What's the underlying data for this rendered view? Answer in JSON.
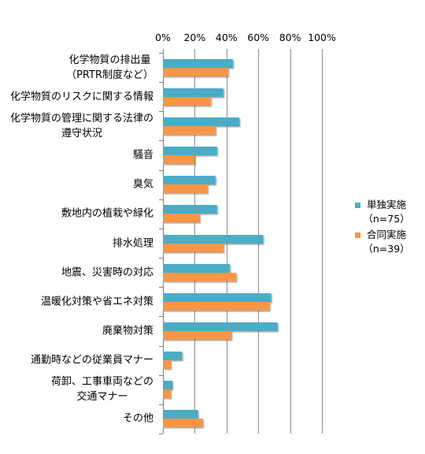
{
  "chart_data": {
    "type": "bar",
    "orientation": "horizontal",
    "categories": [
      "化学物質の排出量\n（PRTR制度など）",
      "化学物質のリスクに関する情報",
      "化学物質の管理に関する法律の\n遵守状況",
      "騒音",
      "臭気",
      "敷地内の植栽や緑化",
      "排水処理",
      "地震、災害時の対応",
      "温暖化対策や省エネ対策",
      "廃棄物対策",
      "通勤時などの従業員マナー",
      "荷卸、工事車両などの\n交通マナー",
      "その他"
    ],
    "series": [
      {
        "name": "単独実施\n（n=75）",
        "color": "#4BACC6",
        "values": [
          44,
          38,
          48,
          34,
          33,
          34,
          63,
          42,
          68,
          72,
          12,
          6,
          22
        ]
      },
      {
        "name": "合同実施\n（n=39）",
        "color": "#F79646",
        "values": [
          41,
          30,
          33,
          20,
          28,
          23,
          38,
          46,
          67,
          43,
          5,
          5,
          25
        ]
      }
    ],
    "x_ticks": [
      0,
      20,
      40,
      60,
      80,
      100
    ],
    "x_tick_labels": [
      "0%",
      "20%",
      "40%",
      "60%",
      "80%",
      "100%"
    ],
    "xlim": [
      0,
      100
    ],
    "grid": true,
    "legend_position": "right"
  }
}
